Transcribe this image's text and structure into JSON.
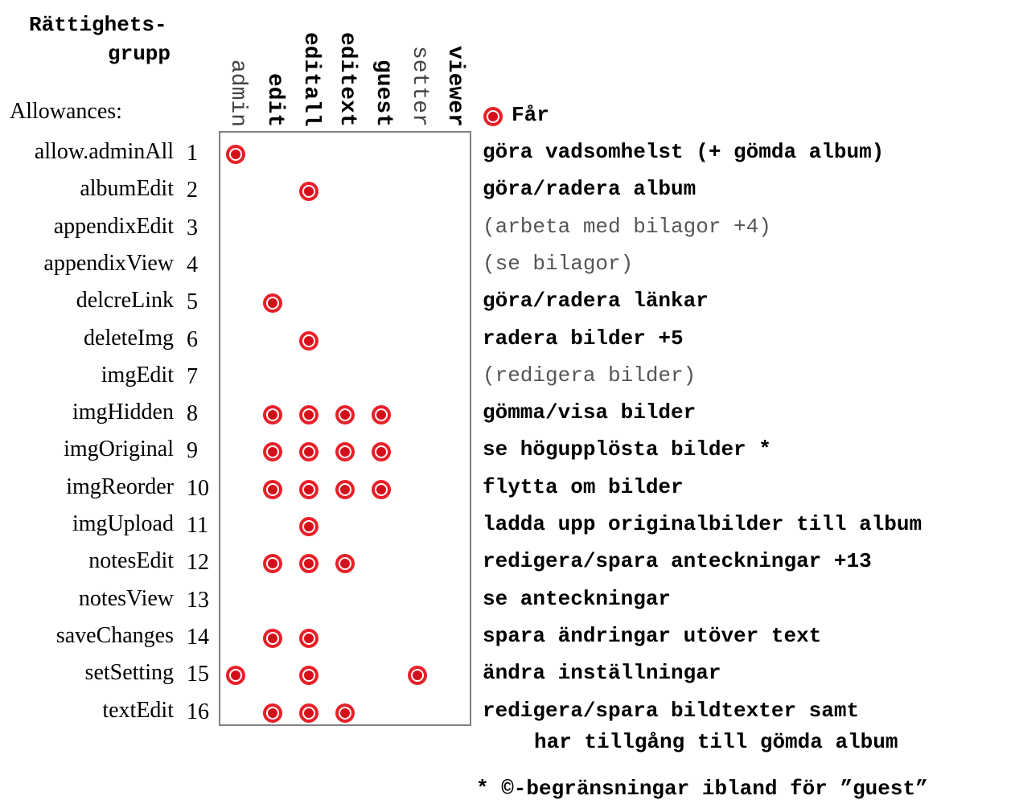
{
  "header": {
    "title_line1": "Rättighets-",
    "title_line2": "grupp",
    "allowances_label": "Allowances:"
  },
  "legend": {
    "label": "Får"
  },
  "colors": {
    "dot": "#e8202a",
    "box_border": "#808080"
  },
  "columns": [
    {
      "name": "admin",
      "style": "light"
    },
    {
      "name": "edit",
      "style": "bold"
    },
    {
      "name": "editall",
      "style": "bold"
    },
    {
      "name": "editext",
      "style": "bold"
    },
    {
      "name": "guest",
      "style": "bold"
    },
    {
      "name": "setter",
      "style": "light"
    },
    {
      "name": "viewer",
      "style": "bold"
    }
  ],
  "rows": [
    {
      "name": "allow.adminAll",
      "num": "1",
      "desc": "göra vadsomhelst (+ gömda album)",
      "desc_style": "bold",
      "marks": [
        1,
        0,
        0,
        0,
        0,
        0,
        0
      ]
    },
    {
      "name": "albumEdit",
      "num": "2",
      "desc": "göra/radera album",
      "desc_style": "bold",
      "marks": [
        0,
        0,
        1,
        0,
        0,
        0,
        0
      ]
    },
    {
      "name": "appendixEdit",
      "num": "3",
      "desc": "(arbeta med bilagor +4)",
      "desc_style": "light",
      "marks": [
        0,
        0,
        0,
        0,
        0,
        0,
        0
      ]
    },
    {
      "name": "appendixView",
      "num": "4",
      "desc": "(se bilagor)",
      "desc_style": "light",
      "marks": [
        0,
        0,
        0,
        0,
        0,
        0,
        0
      ]
    },
    {
      "name": "delcreLink",
      "num": "5",
      "desc": "göra/radera länkar",
      "desc_style": "bold",
      "marks": [
        0,
        1,
        0,
        0,
        0,
        0,
        0
      ]
    },
    {
      "name": "deleteImg",
      "num": "6",
      "desc": "radera bilder +5",
      "desc_style": "bold",
      "marks": [
        0,
        0,
        1,
        0,
        0,
        0,
        0
      ]
    },
    {
      "name": "imgEdit",
      "num": "7",
      "desc": "(redigera bilder)",
      "desc_style": "light",
      "marks": [
        0,
        0,
        0,
        0,
        0,
        0,
        0
      ]
    },
    {
      "name": "imgHidden",
      "num": "8",
      "desc": "gömma/visa bilder",
      "desc_style": "bold",
      "marks": [
        0,
        1,
        1,
        1,
        1,
        0,
        0
      ]
    },
    {
      "name": "imgOriginal",
      "num": "9",
      "desc": "se högupplösta bilder *",
      "desc_style": "bold",
      "marks": [
        0,
        1,
        1,
        1,
        1,
        0,
        0
      ]
    },
    {
      "name": "imgReorder",
      "num": "10",
      "desc": "flytta om bilder",
      "desc_style": "bold",
      "marks": [
        0,
        1,
        1,
        1,
        1,
        0,
        0
      ]
    },
    {
      "name": "imgUpload",
      "num": "11",
      "desc": "ladda upp originalbilder till album",
      "desc_style": "bold",
      "marks": [
        0,
        0,
        1,
        0,
        0,
        0,
        0
      ]
    },
    {
      "name": "notesEdit",
      "num": "12",
      "desc": "redigera/spara anteckningar +13",
      "desc_style": "bold",
      "marks": [
        0,
        1,
        1,
        1,
        0,
        0,
        0
      ]
    },
    {
      "name": "notesView",
      "num": "13",
      "desc": "se anteckningar",
      "desc_style": "bold",
      "marks": [
        0,
        0,
        0,
        0,
        0,
        0,
        0
      ]
    },
    {
      "name": "saveChanges",
      "num": "14",
      "desc": "spara ändringar utöver text",
      "desc_style": "bold",
      "marks": [
        0,
        1,
        1,
        0,
        0,
        0,
        0
      ]
    },
    {
      "name": "setSetting",
      "num": "15",
      "desc": "ändra inställningar",
      "desc_style": "bold",
      "marks": [
        1,
        0,
        1,
        0,
        0,
        1,
        0
      ]
    },
    {
      "name": "textEdit",
      "num": "16",
      "desc": "redigera/spara bildtexter samt",
      "desc_style": "bold",
      "marks": [
        0,
        1,
        1,
        1,
        0,
        0,
        0
      ]
    }
  ],
  "continuation": "har tillgång till gömda album",
  "footnote": "* ©-begränsningar ibland för ”guest”"
}
